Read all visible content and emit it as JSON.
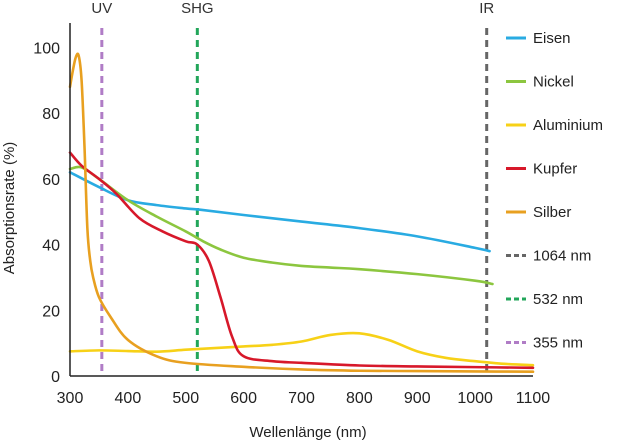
{
  "chart_data": {
    "type": "line",
    "xlabel": "Wellenlänge (nm)",
    "ylabel": "Absorptionsrate (%)",
    "xlim": [
      300,
      1100
    ],
    "ylim": [
      0,
      105
    ],
    "xticks": [
      300,
      400,
      500,
      600,
      700,
      800,
      900,
      1000,
      1100
    ],
    "yticks": [
      0,
      20,
      40,
      60,
      80,
      100
    ],
    "grid": false,
    "legend_position": "right",
    "series": [
      {
        "name": "Eisen",
        "color": "#29abe2",
        "x": [
          300,
          350,
          400,
          450,
          500,
          530,
          600,
          700,
          800,
          900,
          1000,
          1025
        ],
        "y": [
          62,
          57.5,
          53.5,
          52,
          51,
          50.5,
          49,
          47,
          45,
          42.5,
          39,
          38
        ]
      },
      {
        "name": "Nickel",
        "color": "#8cc63f",
        "x": [
          300,
          320,
          350,
          400,
          450,
          500,
          530,
          560,
          600,
          650,
          700,
          750,
          800,
          900,
          1000,
          1030
        ],
        "y": [
          63,
          63.5,
          60,
          53.5,
          48.5,
          44,
          41,
          38.5,
          36,
          34.5,
          33.5,
          33,
          32.5,
          31,
          29,
          28
        ]
      },
      {
        "name": "Aluminium",
        "color": "#f7d117",
        "x": [
          300,
          350,
          400,
          450,
          500,
          550,
          600,
          650,
          700,
          750,
          800,
          850,
          900,
          950,
          1000,
          1050,
          1100
        ],
        "y": [
          7.5,
          7.8,
          7.6,
          7.4,
          8,
          8.5,
          9,
          9.5,
          10.5,
          12.5,
          13,
          11,
          7.5,
          5.5,
          4.5,
          3.7,
          3.3
        ]
      },
      {
        "name": "Kupfer",
        "color": "#d7182a",
        "x": [
          300,
          320,
          350,
          380,
          420,
          460,
          500,
          520,
          540,
          560,
          580,
          600,
          650,
          700,
          800,
          900,
          1000,
          1100
        ],
        "y": [
          68,
          64,
          60,
          55.5,
          48,
          44,
          41,
          40,
          35,
          24,
          12,
          6,
          4.5,
          4,
          3.2,
          2.9,
          2.7,
          2.5
        ]
      },
      {
        "name": "Silber",
        "color": "#e8a020",
        "x": [
          300,
          305,
          310,
          315,
          320,
          325,
          330,
          335,
          340,
          350,
          370,
          400,
          450,
          500,
          600,
          700,
          800,
          900,
          1000,
          1100
        ],
        "y": [
          88,
          93,
          97,
          97.5,
          90,
          70,
          45,
          35,
          30,
          24,
          18,
          11,
          6,
          4,
          2.8,
          2,
          1.6,
          1.5,
          1.4,
          1.3
        ]
      }
    ],
    "markers": [
      {
        "name": "1064 nm",
        "label": "IR",
        "x": 1020,
        "color": "#666666"
      },
      {
        "name": "532 nm",
        "label": "SHG",
        "x": 520,
        "color": "#22a65a"
      },
      {
        "name": "355 nm",
        "label": "UV",
        "x": 355,
        "color": "#b07cc6"
      }
    ]
  }
}
